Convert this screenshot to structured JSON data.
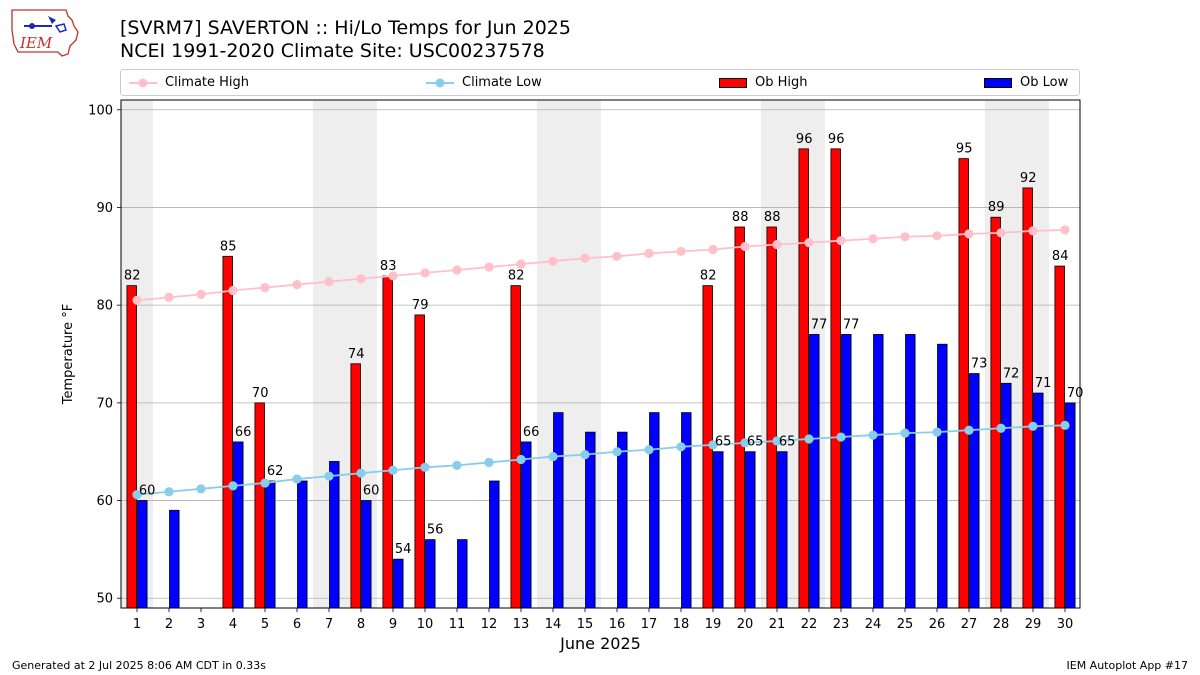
{
  "header": {
    "title_line1": "[SVRM7] SAVERTON :: Hi/Lo Temps for Jun 2025",
    "title_line2": "NCEI 1991-2020 Climate Site: USC00237578",
    "logo_text": "IEM"
  },
  "legend": {
    "climate_high": "Climate High",
    "climate_low": "Climate Low",
    "ob_high": "Ob High",
    "ob_low": "Ob Low"
  },
  "colors": {
    "ob_high": "#ff0000",
    "ob_low": "#0000ff",
    "climate_high": "#ffc0cb",
    "climate_low": "#87ceeb",
    "weekend_shade": "#eeeeee"
  },
  "footer": {
    "generated": "Generated at 2 Jul 2025 8:06 AM CDT in 0.33s",
    "app": "IEM Autoplot App #17"
  },
  "chart_data": {
    "type": "bar",
    "xlabel": "June 2025",
    "ylabel": "Temperature °F",
    "ylim": [
      49,
      101
    ],
    "yticks": [
      50,
      60,
      70,
      80,
      90,
      100
    ],
    "grid": "horizontal",
    "legend_position": "top",
    "categories": [
      "1",
      "2",
      "3",
      "4",
      "5",
      "6",
      "7",
      "8",
      "9",
      "10",
      "11",
      "12",
      "13",
      "14",
      "15",
      "16",
      "17",
      "18",
      "19",
      "20",
      "21",
      "22",
      "23",
      "24",
      "25",
      "26",
      "27",
      "28",
      "29",
      "30"
    ],
    "shaded_days": [
      1,
      7,
      8,
      14,
      15,
      21,
      22,
      28,
      29
    ],
    "series": [
      {
        "name": "Ob High",
        "kind": "bar",
        "values": [
          82,
          null,
          null,
          85,
          70,
          null,
          null,
          74,
          83,
          79,
          null,
          null,
          82,
          null,
          null,
          null,
          null,
          null,
          82,
          88,
          88,
          96,
          96,
          null,
          null,
          null,
          95,
          89,
          92,
          84
        ],
        "labeled": true
      },
      {
        "name": "Ob Low",
        "kind": "bar",
        "values": [
          60,
          59,
          null,
          66,
          62,
          62,
          64,
          60,
          54,
          56,
          56,
          62,
          66,
          69,
          67,
          67,
          69,
          69,
          65,
          65,
          65,
          77,
          77,
          77,
          77,
          76,
          73,
          72,
          71,
          70
        ],
        "labeled_days": [
          1,
          4,
          5,
          8,
          9,
          10,
          13,
          19,
          20,
          21,
          22,
          23,
          27,
          28,
          29,
          30
        ]
      },
      {
        "name": "Climate High",
        "kind": "line",
        "values": [
          80.5,
          80.8,
          81.1,
          81.5,
          81.8,
          82.1,
          82.4,
          82.7,
          83.0,
          83.3,
          83.6,
          83.9,
          84.2,
          84.5,
          84.8,
          85.0,
          85.3,
          85.5,
          85.7,
          86.0,
          86.2,
          86.4,
          86.6,
          86.8,
          87.0,
          87.1,
          87.3,
          87.4,
          87.6,
          87.7
        ]
      },
      {
        "name": "Climate Low",
        "kind": "line",
        "values": [
          60.6,
          60.9,
          61.2,
          61.5,
          61.8,
          62.2,
          62.5,
          62.8,
          63.1,
          63.4,
          63.6,
          63.9,
          64.2,
          64.5,
          64.7,
          65.0,
          65.2,
          65.5,
          65.7,
          65.9,
          66.1,
          66.3,
          66.5,
          66.7,
          66.9,
          67.0,
          67.2,
          67.4,
          67.6,
          67.7
        ]
      }
    ]
  }
}
